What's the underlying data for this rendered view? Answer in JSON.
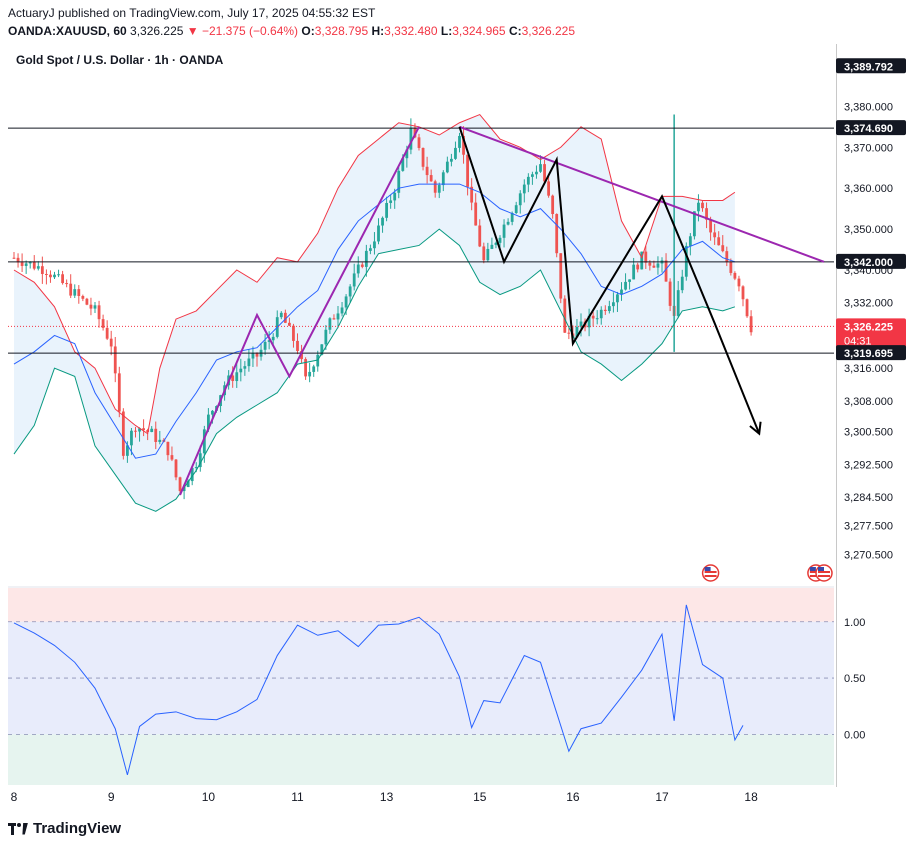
{
  "header": {
    "publisher_line": "ActuaryJ published on TradingView.com, July 17, 2025 04:55:32 EST",
    "symbol": "OANDA:XAUUSD, 60",
    "price": "3,326.225",
    "change": "▼ −21.375 (−0.64%)",
    "o_label": "O:",
    "o_value": "3,328.795",
    "h_label": "H:",
    "h_value": "3,332.480",
    "l_label": "L:",
    "l_value": "3,324.965",
    "c_label": "C:",
    "c_value": "3,326.225"
  },
  "chart_title": "Gold Spot / U.S. Dollar · 1h · OANDA",
  "branding": "TradingView",
  "colors": {
    "up": "#26a69a",
    "down": "#ef5350",
    "bb_upper": "#f23645",
    "bb_mid": "#2962ff",
    "bb_lower": "#089981",
    "bb_fill": "#e3f0fb",
    "annotation": "#9c27b0",
    "rsi": "#2962ff"
  },
  "chart_data": [
    {
      "type": "candlestick",
      "title": "Gold Spot / U.S. Dollar · 1h · OANDA",
      "y_range": [
        3263,
        3395
      ],
      "y_ticks": [
        "3,380.000",
        "3,370.000",
        "3,360.000",
        "3,350.000",
        "3,340.000",
        "3,332.000",
        "3,316.000",
        "3,308.000",
        "3,300.500",
        "3,292.500",
        "3,284.500",
        "3,277.500",
        "3,270.500"
      ],
      "y_tick_values": [
        3380,
        3370,
        3360,
        3350,
        3340,
        3332,
        3316,
        3308,
        3300.5,
        3292.5,
        3284.5,
        3277.5,
        3270.5
      ],
      "x_ticks": [
        "8",
        "9",
        "10",
        "11",
        "13",
        "15",
        "16",
        "17",
        "18"
      ],
      "price_labels": [
        {
          "text": "3,389.792",
          "value": 3389.792,
          "style": "dark"
        },
        {
          "text": "3,374.690",
          "value": 3374.69,
          "style": "dark",
          "line": true
        },
        {
          "text": "3,342.000",
          "value": 3342,
          "style": "dark",
          "line": true
        },
        {
          "text": "3,326.225",
          "value": 3326.225,
          "style": "red",
          "countdown": "04:31"
        },
        {
          "text": "3,319.695",
          "value": 3319.695,
          "style": "dark",
          "line": true
        }
      ],
      "close_path": [
        [
          0,
          3343
        ],
        [
          8,
          3340
        ],
        [
          14,
          3335
        ],
        [
          20,
          3330
        ],
        [
          24,
          3322
        ],
        [
          27,
          3296
        ],
        [
          30,
          3302
        ],
        [
          34,
          3300
        ],
        [
          38,
          3296
        ],
        [
          41,
          3286
        ],
        [
          45,
          3293
        ],
        [
          48,
          3304
        ],
        [
          52,
          3312
        ],
        [
          56,
          3316
        ],
        [
          60,
          3319
        ],
        [
          63,
          3323
        ],
        [
          66,
          3329
        ],
        [
          70,
          3321
        ],
        [
          72,
          3313
        ],
        [
          75,
          3320
        ],
        [
          78,
          3327
        ],
        [
          82,
          3334
        ],
        [
          86,
          3342
        ],
        [
          90,
          3350
        ],
        [
          94,
          3360
        ],
        [
          98,
          3374
        ],
        [
          101,
          3366
        ],
        [
          104,
          3359
        ],
        [
          107,
          3366
        ],
        [
          110,
          3374
        ],
        [
          113,
          3355
        ],
        [
          116,
          3342
        ],
        [
          121,
          3351
        ],
        [
          126,
          3361
        ],
        [
          130,
          3366
        ],
        [
          133,
          3353
        ],
        [
          136,
          3324
        ],
        [
          140,
          3326
        ],
        [
          145,
          3330
        ],
        [
          150,
          3336
        ],
        [
          155,
          3343
        ],
        [
          160,
          3341
        ],
        [
          163,
          3328
        ],
        [
          166,
          3345
        ],
        [
          169,
          3357
        ],
        [
          172,
          3349
        ],
        [
          176,
          3342
        ],
        [
          179,
          3337
        ],
        [
          182,
          3326
        ]
      ],
      "bollinger_upper": [
        [
          0,
          3340
        ],
        [
          5,
          3337
        ],
        [
          10,
          3331
        ],
        [
          15,
          3320
        ],
        [
          20,
          3316
        ],
        [
          25,
          3306
        ],
        [
          30,
          3302
        ],
        [
          33,
          3300
        ],
        [
          36,
          3316
        ],
        [
          40,
          3328
        ],
        [
          45,
          3330
        ],
        [
          50,
          3335
        ],
        [
          55,
          3340
        ],
        [
          60,
          3337
        ],
        [
          65,
          3343
        ],
        [
          70,
          3342
        ],
        [
          75,
          3349
        ],
        [
          80,
          3360
        ],
        [
          85,
          3368
        ],
        [
          90,
          3372
        ],
        [
          95,
          3376
        ],
        [
          100,
          3375
        ],
        [
          105,
          3373
        ],
        [
          110,
          3376
        ],
        [
          115,
          3378
        ],
        [
          120,
          3372
        ],
        [
          125,
          3370
        ],
        [
          130,
          3367
        ],
        [
          135,
          3370
        ],
        [
          140,
          3375
        ],
        [
          145,
          3372
        ],
        [
          150,
          3352
        ],
        [
          155,
          3343
        ],
        [
          160,
          3358
        ],
        [
          165,
          3358
        ],
        [
          170,
          3357
        ],
        [
          175,
          3357
        ],
        [
          178,
          3359
        ]
      ],
      "bollinger_mid": [
        [
          0,
          3317
        ],
        [
          5,
          3320
        ],
        [
          10,
          3324
        ],
        [
          15,
          3322
        ],
        [
          20,
          3310
        ],
        [
          25,
          3302
        ],
        [
          30,
          3294
        ],
        [
          35,
          3295
        ],
        [
          40,
          3303
        ],
        [
          45,
          3310
        ],
        [
          50,
          3318
        ],
        [
          55,
          3320
        ],
        [
          60,
          3321
        ],
        [
          65,
          3326
        ],
        [
          70,
          3331
        ],
        [
          75,
          3335
        ],
        [
          80,
          3345
        ],
        [
          85,
          3352
        ],
        [
          90,
          3356
        ],
        [
          95,
          3360
        ],
        [
          100,
          3361
        ],
        [
          105,
          3361
        ],
        [
          110,
          3361
        ],
        [
          115,
          3359
        ],
        [
          120,
          3355
        ],
        [
          125,
          3353
        ],
        [
          130,
          3355
        ],
        [
          135,
          3350
        ],
        [
          140,
          3344
        ],
        [
          145,
          3336
        ],
        [
          150,
          3334
        ],
        [
          155,
          3336
        ],
        [
          160,
          3339
        ],
        [
          165,
          3345
        ],
        [
          170,
          3347
        ],
        [
          175,
          3343
        ],
        [
          178,
          3342
        ]
      ],
      "bollinger_lower": [
        [
          0,
          3295
        ],
        [
          5,
          3302
        ],
        [
          10,
          3316
        ],
        [
          15,
          3314
        ],
        [
          20,
          3297
        ],
        [
          25,
          3290
        ],
        [
          30,
          3283
        ],
        [
          35,
          3281
        ],
        [
          40,
          3284
        ],
        [
          45,
          3291
        ],
        [
          50,
          3300
        ],
        [
          55,
          3304
        ],
        [
          60,
          3307
        ],
        [
          65,
          3310
        ],
        [
          70,
          3317
        ],
        [
          75,
          3318
        ],
        [
          80,
          3326
        ],
        [
          85,
          3336
        ],
        [
          90,
          3344
        ],
        [
          95,
          3345
        ],
        [
          100,
          3346
        ],
        [
          105,
          3350
        ],
        [
          110,
          3346
        ],
        [
          115,
          3337
        ],
        [
          120,
          3334
        ],
        [
          125,
          3336
        ],
        [
          130,
          3340
        ],
        [
          135,
          3330
        ],
        [
          140,
          3320
        ],
        [
          145,
          3317
        ],
        [
          150,
          3313
        ],
        [
          155,
          3317
        ],
        [
          160,
          3322
        ],
        [
          165,
          3330
        ],
        [
          170,
          3331
        ],
        [
          175,
          3330
        ],
        [
          178,
          3331
        ]
      ],
      "annotations": [
        {
          "color": "purple",
          "points": [
            [
              41,
              3285
            ],
            [
              60,
              3329
            ],
            [
              68,
              3314
            ],
            [
              100,
              3375
            ]
          ]
        },
        {
          "color": "purple",
          "points": [
            [
              110,
              3375
            ],
            [
              200,
              3342
            ]
          ]
        },
        {
          "color": "black",
          "points": [
            [
              110,
              3375
            ],
            [
              121,
              3342
            ],
            [
              134,
              3367
            ],
            [
              138,
              3322
            ],
            [
              160,
              3358
            ],
            [
              173,
              3327
            ],
            [
              184,
              3300
            ]
          ],
          "arrow": true
        }
      ]
    },
    {
      "type": "line",
      "title": "",
      "y_range": [
        -0.45,
        1.3
      ],
      "y_ticks": [
        "1.00",
        "0.50",
        "0.00"
      ],
      "y_tick_values": [
        1.0,
        0.5,
        0.0
      ],
      "values": [
        [
          0,
          0.99
        ],
        [
          5,
          0.9
        ],
        [
          10,
          0.79
        ],
        [
          15,
          0.64
        ],
        [
          20,
          0.41
        ],
        [
          25,
          0.05
        ],
        [
          28,
          -0.36
        ],
        [
          31,
          0.07
        ],
        [
          35,
          0.18
        ],
        [
          40,
          0.2
        ],
        [
          45,
          0.14
        ],
        [
          50,
          0.13
        ],
        [
          55,
          0.2
        ],
        [
          60,
          0.31
        ],
        [
          65,
          0.7
        ],
        [
          70,
          0.97
        ],
        [
          75,
          0.88
        ],
        [
          80,
          0.92
        ],
        [
          85,
          0.78
        ],
        [
          90,
          0.97
        ],
        [
          95,
          0.98
        ],
        [
          100,
          1.04
        ],
        [
          105,
          0.89
        ],
        [
          110,
          0.51
        ],
        [
          113,
          0.06
        ],
        [
          116,
          0.3
        ],
        [
          120,
          0.28
        ],
        [
          126,
          0.7
        ],
        [
          130,
          0.64
        ],
        [
          134,
          0.19
        ],
        [
          137,
          -0.15
        ],
        [
          140,
          0.05
        ],
        [
          145,
          0.1
        ],
        [
          150,
          0.33
        ],
        [
          155,
          0.57
        ],
        [
          160,
          0.89
        ],
        [
          163,
          0.12
        ],
        [
          166,
          1.15
        ],
        [
          170,
          0.62
        ],
        [
          175,
          0.5
        ],
        [
          178,
          -0.05
        ],
        [
          180,
          0.08
        ]
      ]
    }
  ]
}
